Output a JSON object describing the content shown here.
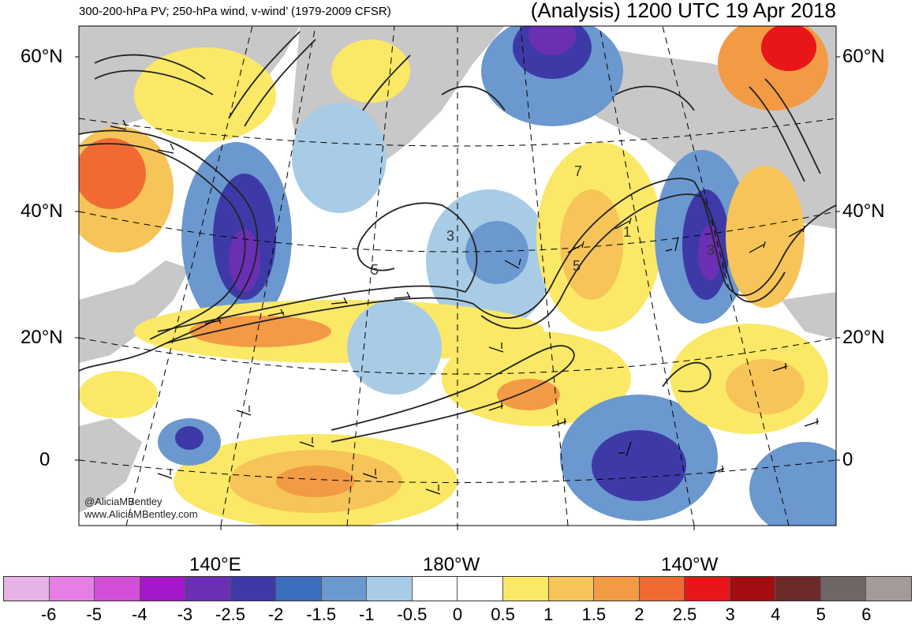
{
  "title": {
    "left": "300-200-hPa PV; 250-hPa wind, v-wind’ (1979-2009 CFSR)",
    "right": "(Analysis) 1200 UTC 19 Apr 2018"
  },
  "credit": {
    "handle": "@AliciaMBentley",
    "site": "www.AliciaMBentley.com"
  },
  "lat_labels": [
    "60°N",
    "40°N",
    "20°N",
    "0"
  ],
  "lon_labels": [
    "140°E",
    "180°W",
    "140°W"
  ],
  "contour_labels": [
    "7",
    "3",
    "5",
    "5",
    "1",
    "3"
  ],
  "colorbar": {
    "colors": [
      "#e6b3e6",
      "#e57fe5",
      "#d34fd8",
      "#a418c9",
      "#6a2fb3",
      "#3d3aa8",
      "#3d6ebd",
      "#6b98cf",
      "#a8cce6",
      "#ffffff",
      "#ffffff",
      "#fbe866",
      "#f6c458",
      "#f39a45",
      "#f26a33",
      "#e8151a",
      "#a30d10",
      "#6e2a2a",
      "#6f6665",
      "#a39b99"
    ],
    "labels": [
      "-6",
      "-5",
      "-4",
      "-3",
      "-2.5",
      "-2",
      "-1.5",
      "-1",
      "-0.5",
      "0",
      "0.5",
      "1",
      "1.5",
      "2",
      "2.5",
      "3",
      "4",
      "5",
      "6"
    ]
  }
}
